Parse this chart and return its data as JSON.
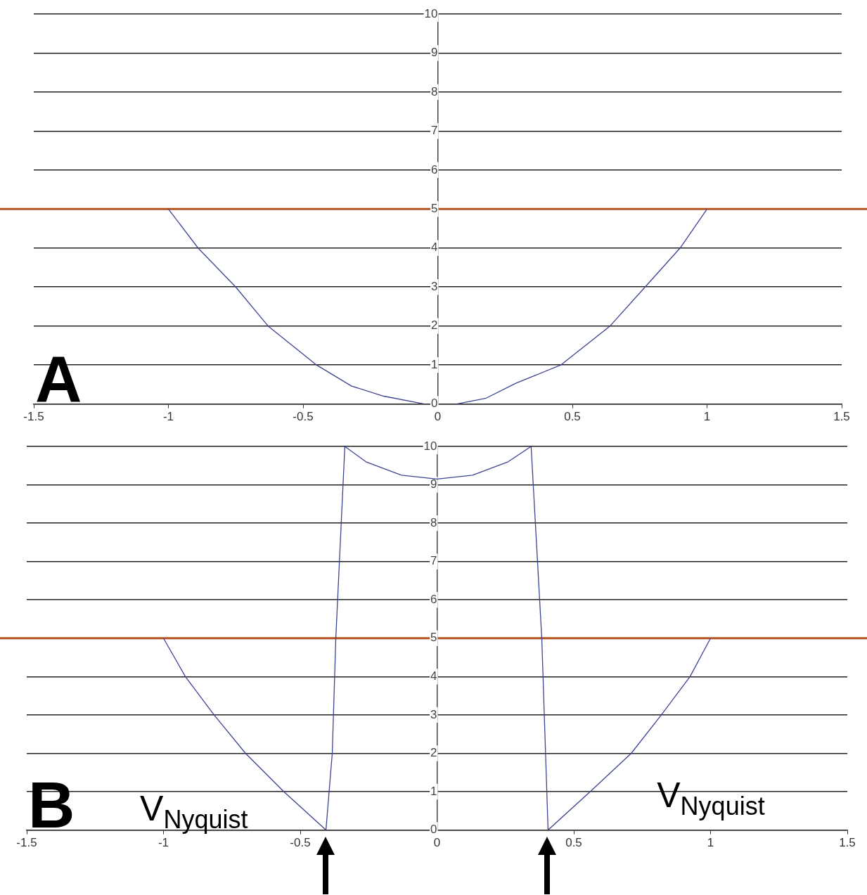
{
  "chart_data": [
    {
      "type": "line",
      "x": [
        -1,
        -0.89,
        -0.75,
        -0.63,
        -0.45,
        -0.32,
        -0.2,
        -0.05,
        0.01,
        0.07,
        0.18,
        0.29,
        0.457,
        0.64,
        0.77,
        0.9,
        1
      ],
      "series": [
        {
          "color": "#3d4494",
          "values": [
            5,
            4,
            3,
            2,
            1,
            0.46,
            0.2,
            0,
            null,
            0,
            0.15,
            0.53,
            1,
            2,
            3,
            4,
            5
          ]
        }
      ],
      "xlim": [
        -1.5,
        1.5
      ],
      "xticks": [
        -1.5,
        -1,
        -0.5,
        0,
        0.5,
        1,
        1.5
      ],
      "ylim": [
        0,
        10
      ],
      "yticks": [
        0,
        1,
        2,
        3,
        4,
        5,
        6,
        7,
        8,
        9,
        10
      ],
      "grid": "y",
      "marker": "none",
      "line_style": "solid",
      "ref_lines": [
        {
          "axis": "y",
          "value": 5,
          "color": "#b4531f"
        }
      ],
      "annotations": [
        "A"
      ]
    },
    {
      "type": "line",
      "x": [
        -1,
        -0.92,
        -0.815,
        -0.7,
        -0.56,
        -0.406,
        -0.383,
        -0.37,
        -0.337,
        -0.26,
        -0.13,
        0,
        0.13,
        0.26,
        0.344,
        0.383,
        0.406,
        0.56,
        0.71,
        0.82,
        0.925,
        1
      ],
      "series": [
        {
          "color": "#3d4494",
          "values": [
            5,
            4,
            3,
            2,
            1,
            0,
            2,
            5,
            10,
            9.6,
            9.25,
            9.15,
            9.25,
            9.6,
            10,
            5,
            0,
            1,
            2,
            3,
            4,
            5
          ]
        }
      ],
      "xlim": [
        -1.5,
        1.5
      ],
      "xticks": [
        -1.5,
        -1,
        -0.5,
        0,
        0.5,
        1,
        1.5
      ],
      "ylim": [
        0,
        10
      ],
      "yticks": [
        0,
        1,
        2,
        3,
        4,
        5,
        6,
        7,
        8,
        9,
        10
      ],
      "grid": "y",
      "marker": "none",
      "line_style": "solid",
      "ref_lines": [
        {
          "axis": "y",
          "value": 5,
          "color": "#b4531f"
        }
      ],
      "annotations": [
        "B",
        "V$_{Nyquist}$",
        "V$_{Nyquist}$"
      ]
    }
  ]
}
